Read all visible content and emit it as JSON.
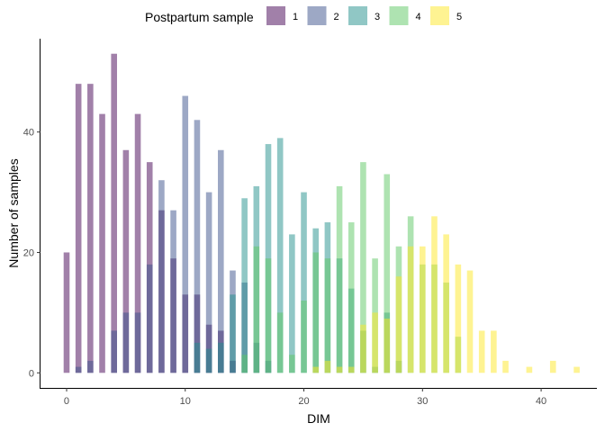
{
  "chart_data": {
    "type": "bar",
    "mode": "overlay",
    "xlabel": "DIM",
    "ylabel": "Number of samples",
    "xlim": [
      -2.2,
      44.7
    ],
    "ylim": [
      -2.5,
      55.5
    ],
    "xticks": [
      0,
      10,
      20,
      30,
      40
    ],
    "yticks": [
      0,
      20,
      40
    ],
    "grid": false,
    "legend": {
      "title": "Postpartum sample",
      "position": "top"
    },
    "series": [
      {
        "name": "1",
        "color": "#440154",
        "x": [
          0,
          1,
          2,
          3,
          4,
          5,
          6,
          7,
          8,
          9,
          10,
          11,
          12,
          13,
          14
        ],
        "values": [
          20,
          48,
          48,
          43,
          53,
          37,
          43,
          35,
          27,
          19,
          13,
          13,
          8,
          7,
          2
        ]
      },
      {
        "name": "2",
        "color": "#3B528B",
        "x": [
          1,
          2,
          4,
          5,
          6,
          7,
          8,
          9,
          10,
          11,
          12,
          13,
          14,
          15,
          16,
          17
        ],
        "values": [
          1,
          2,
          7,
          10,
          10,
          18,
          32,
          27,
          46,
          42,
          30,
          37,
          17,
          15,
          5,
          2
        ]
      },
      {
        "name": "3",
        "color": "#21908C",
        "x": [
          11,
          12,
          13,
          14,
          15,
          16,
          17,
          18,
          19,
          20,
          21,
          22,
          23,
          24,
          25,
          26,
          27,
          28
        ],
        "values": [
          5,
          4,
          5,
          13,
          29,
          31,
          38,
          39,
          23,
          30,
          24,
          25,
          19,
          14,
          7,
          1,
          10,
          2
        ]
      },
      {
        "name": "4",
        "color": "#5DC863",
        "x": [
          15,
          16,
          17,
          18,
          19,
          20,
          21,
          22,
          23,
          24,
          25,
          26,
          27,
          28,
          29,
          30,
          31,
          32,
          33
        ],
        "values": [
          3,
          21,
          19,
          10,
          3,
          12,
          20,
          19,
          31,
          25,
          35,
          19,
          33,
          21,
          26,
          18,
          18,
          15,
          6
        ]
      },
      {
        "name": "5",
        "color": "#FDE725",
        "x": [
          21,
          22,
          23,
          24,
          25,
          26,
          27,
          28,
          29,
          30,
          31,
          32,
          33,
          34,
          35,
          36,
          37,
          38,
          39,
          40,
          41,
          42,
          43
        ],
        "values": [
          1,
          2,
          1,
          1,
          8,
          10,
          9,
          16,
          21,
          21,
          26,
          23,
          18,
          17,
          7,
          7,
          2,
          0,
          1,
          0,
          2,
          0,
          1
        ]
      }
    ]
  }
}
